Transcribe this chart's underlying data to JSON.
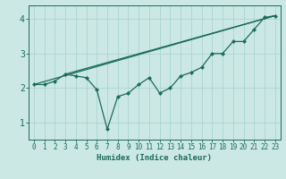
{
  "xlabel": "Humidex (Indice chaleur)",
  "bg_color": "#cce8e4",
  "grid_color": "#aad4d0",
  "line_color": "#1a6b5a",
  "xlim": [
    -0.5,
    23.5
  ],
  "ylim": [
    0.5,
    4.4
  ],
  "xtick_labels": [
    "0",
    "1",
    "2",
    "3",
    "4",
    "5",
    "6",
    "7",
    "8",
    "9",
    "10",
    "11",
    "12",
    "13",
    "14",
    "15",
    "16",
    "17",
    "18",
    "19",
    "20",
    "21",
    "22",
    "23"
  ],
  "xtick_vals": [
    0,
    1,
    2,
    3,
    4,
    5,
    6,
    7,
    8,
    9,
    10,
    11,
    12,
    13,
    14,
    15,
    16,
    17,
    18,
    19,
    20,
    21,
    22,
    23
  ],
  "yticks": [
    1,
    2,
    3,
    4
  ],
  "curve_x": [
    0,
    1,
    2,
    3,
    4,
    5,
    6,
    7,
    8,
    9,
    10,
    11,
    12,
    13,
    14,
    15,
    16,
    17,
    18,
    19,
    20,
    21,
    22,
    23
  ],
  "curve_y": [
    2.1,
    2.1,
    2.2,
    2.4,
    2.35,
    2.3,
    1.95,
    0.8,
    1.75,
    1.85,
    2.1,
    2.3,
    1.85,
    2.0,
    2.35,
    2.45,
    2.6,
    3.0,
    3.0,
    3.35,
    3.35,
    3.7,
    4.05,
    4.1
  ],
  "line1_x": [
    0,
    23
  ],
  "line1_y": [
    2.1,
    4.1
  ],
  "line2_x": [
    3,
    23
  ],
  "line2_y": [
    2.4,
    4.1
  ]
}
